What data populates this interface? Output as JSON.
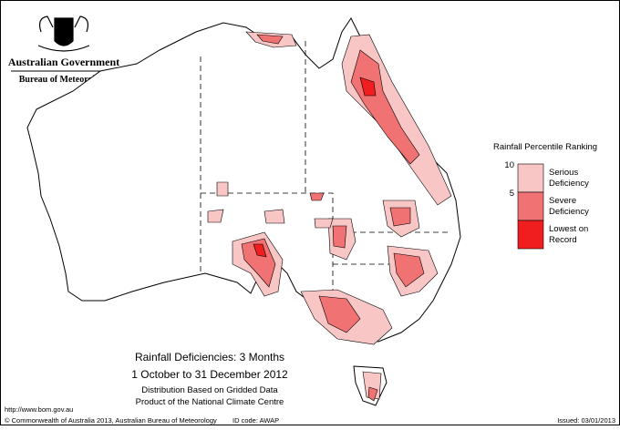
{
  "header": {
    "line1": "Australian Government",
    "line2": "Bureau of Meteorology"
  },
  "legend": {
    "title": "Rainfall Percentile Ranking",
    "ticks": [
      10,
      5
    ],
    "items": [
      {
        "lines": [
          "Serious",
          "Deficiency"
        ],
        "color": "#f9c6c6"
      },
      {
        "lines": [
          "Severe",
          "Deficiency"
        ],
        "color": "#f07272"
      },
      {
        "lines": [
          "Lowest on",
          "Record"
        ],
        "color": "#f01e1e"
      }
    ]
  },
  "caption": {
    "title": "Rainfall Deficiencies: 3 Months",
    "period": "1 October to 31 December 2012",
    "note1": "Distribution Based on Gridded Data",
    "note2": "Product of the National Climate Centre"
  },
  "footer": {
    "url": "http://www.bom.gov.au",
    "copyright": "© Commonwealth of Australia 2013, Australian Bureau of Meteorology",
    "id": "ID code: AWAP",
    "issued": "Issued: 03/01/2013"
  }
}
